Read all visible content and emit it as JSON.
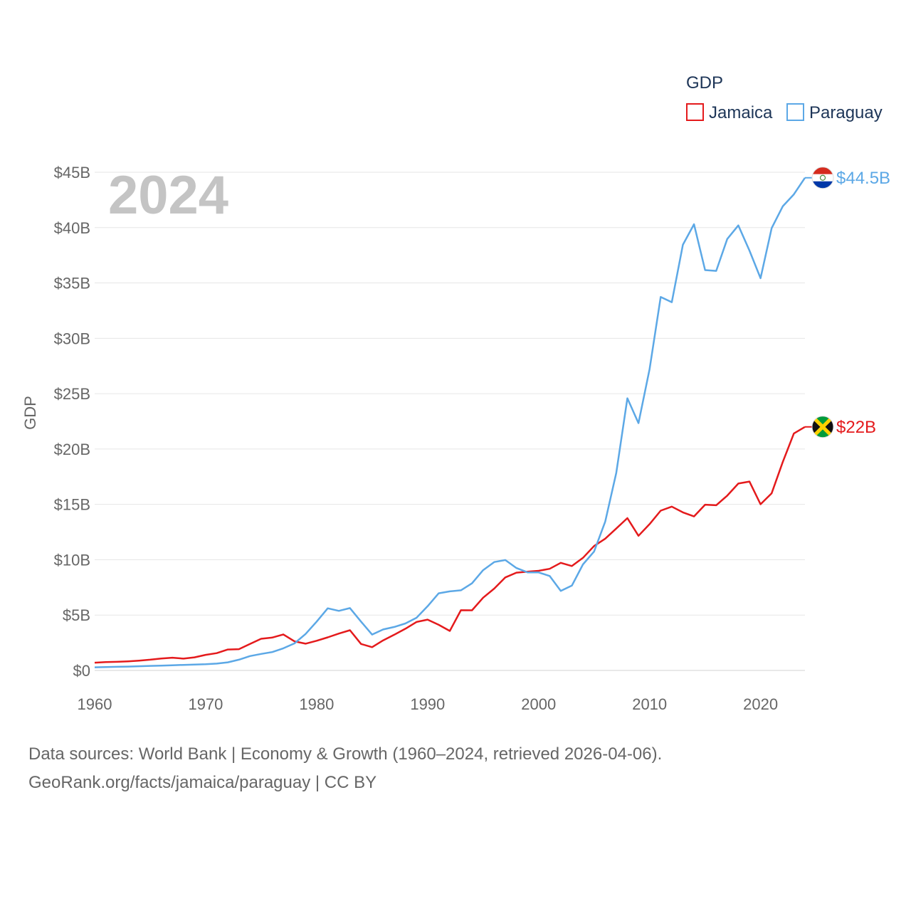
{
  "chart_data": {
    "type": "line",
    "year_label": "2024",
    "ylabel": "GDP",
    "legend_title": "GDP",
    "xlim": [
      1960,
      2024
    ],
    "ylim": [
      0,
      45
    ],
    "y_ticks": [
      {
        "value": 0,
        "label": "$0"
      },
      {
        "value": 5,
        "label": "$5B"
      },
      {
        "value": 10,
        "label": "$10B"
      },
      {
        "value": 15,
        "label": "$15B"
      },
      {
        "value": 20,
        "label": "$20B"
      },
      {
        "value": 25,
        "label": "$25B"
      },
      {
        "value": 30,
        "label": "$30B"
      },
      {
        "value": 35,
        "label": "$35B"
      },
      {
        "value": 40,
        "label": "$40B"
      },
      {
        "value": 45,
        "label": "$45B"
      }
    ],
    "x_ticks": [
      {
        "value": 1960,
        "label": "1960"
      },
      {
        "value": 1970,
        "label": "1970"
      },
      {
        "value": 1980,
        "label": "1980"
      },
      {
        "value": 1990,
        "label": "1990"
      },
      {
        "value": 2000,
        "label": "2000"
      },
      {
        "value": 2010,
        "label": "2010"
      },
      {
        "value": 2020,
        "label": "2020"
      }
    ],
    "units": "billions USD",
    "series": [
      {
        "name": "Jamaica",
        "color": "#e41a1c",
        "end_label": "$22B",
        "flag": "jamaica-flag",
        "x": [
          1960,
          1961,
          1962,
          1963,
          1964,
          1965,
          1966,
          1967,
          1968,
          1969,
          1970,
          1971,
          1972,
          1973,
          1974,
          1975,
          1976,
          1977,
          1978,
          1979,
          1980,
          1981,
          1982,
          1983,
          1984,
          1985,
          1986,
          1987,
          1988,
          1989,
          1990,
          1991,
          1992,
          1993,
          1994,
          1995,
          1996,
          1997,
          1998,
          1999,
          2000,
          2001,
          2002,
          2003,
          2004,
          2005,
          2006,
          2007,
          2008,
          2009,
          2010,
          2011,
          2012,
          2013,
          2014,
          2015,
          2016,
          2017,
          2018,
          2019,
          2020,
          2021,
          2022,
          2023,
          2024
        ],
        "values": [
          0.7,
          0.75,
          0.78,
          0.82,
          0.89,
          0.97,
          1.08,
          1.15,
          1.07,
          1.18,
          1.41,
          1.56,
          1.89,
          1.92,
          2.4,
          2.86,
          2.97,
          3.25,
          2.63,
          2.42,
          2.68,
          2.99,
          3.33,
          3.63,
          2.39,
          2.1,
          2.72,
          3.23,
          3.77,
          4.38,
          4.59,
          4.12,
          3.57,
          5.44,
          5.43,
          6.57,
          7.39,
          8.4,
          8.83,
          8.92,
          9.0,
          9.18,
          9.72,
          9.43,
          10.17,
          11.24,
          11.9,
          12.82,
          13.76,
          12.16,
          13.22,
          14.43,
          14.8,
          14.28,
          13.91,
          14.97,
          14.92,
          15.79,
          16.88,
          17.06,
          15.01,
          16.0,
          18.82,
          21.4,
          22.0
        ]
      },
      {
        "name": "Paraguay",
        "color": "#5ca8e6",
        "end_label": "$44.5B",
        "flag": "paraguay-flag",
        "x": [
          1960,
          1961,
          1962,
          1963,
          1964,
          1965,
          1966,
          1967,
          1968,
          1969,
          1970,
          1971,
          1972,
          1973,
          1974,
          1975,
          1976,
          1977,
          1978,
          1979,
          1980,
          1981,
          1982,
          1983,
          1984,
          1985,
          1986,
          1987,
          1988,
          1989,
          1990,
          1991,
          1992,
          1993,
          1994,
          1995,
          1996,
          1997,
          1998,
          1999,
          2000,
          2001,
          2002,
          2003,
          2004,
          2005,
          2006,
          2007,
          2008,
          2009,
          2010,
          2011,
          2012,
          2013,
          2014,
          2015,
          2016,
          2017,
          2018,
          2019,
          2020,
          2021,
          2022,
          2023,
          2024
        ],
        "values": [
          0.28,
          0.3,
          0.33,
          0.35,
          0.38,
          0.41,
          0.44,
          0.47,
          0.5,
          0.53,
          0.56,
          0.62,
          0.73,
          0.97,
          1.3,
          1.49,
          1.66,
          2.0,
          2.44,
          3.29,
          4.41,
          5.61,
          5.38,
          5.63,
          4.41,
          3.24,
          3.7,
          3.93,
          4.24,
          4.76,
          5.8,
          6.97,
          7.14,
          7.24,
          7.87,
          9.06,
          9.79,
          9.97,
          9.25,
          8.86,
          8.85,
          8.53,
          7.18,
          7.66,
          9.58,
          10.74,
          13.43,
          17.85,
          24.58,
          22.34,
          27.22,
          33.73,
          33.26,
          38.45,
          40.3,
          36.16,
          36.09,
          38.97,
          40.2,
          37.93,
          35.43,
          39.95,
          41.92,
          43.0,
          44.5
        ]
      }
    ]
  },
  "source": {
    "line1": "Data sources: World Bank | Economy & Growth (1960–2024, retrieved 2026-04-06).",
    "line2": "GeoRank.org/facts/jamaica/paraguay | CC BY"
  }
}
